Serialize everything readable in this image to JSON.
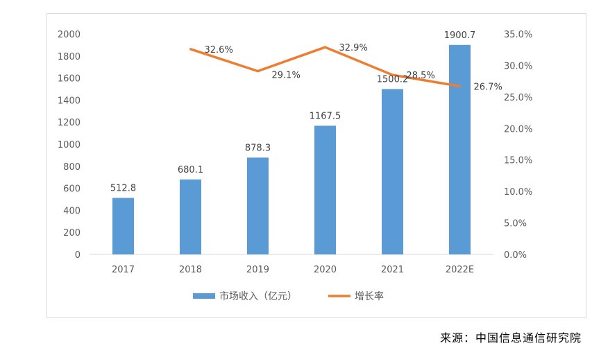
{
  "chart_data": {
    "type": "bar+line",
    "categories": [
      "2017",
      "2018",
      "2019",
      "2020",
      "2021",
      "2022E"
    ],
    "series": [
      {
        "name": "市场收入（亿元）",
        "type": "bar",
        "axis": "left",
        "values": [
          512.8,
          680.1,
          878.3,
          1167.5,
          1500.2,
          1900.7
        ],
        "labels": [
          "512.8",
          "680.1",
          "878.3",
          "1167.5",
          "1500.2",
          "1900.7"
        ],
        "color": "#5b9bd5"
      },
      {
        "name": "增长率",
        "type": "line",
        "axis": "right",
        "values": [
          null,
          32.6,
          29.1,
          32.9,
          28.5,
          26.7
        ],
        "labels": [
          "",
          "32.6%",
          "29.1%",
          "32.9%",
          "28.5%",
          "26.7%"
        ],
        "color": "#ed7d31"
      }
    ],
    "y_left": {
      "min": 0,
      "max": 2000,
      "step": 200,
      "ticks": [
        "0",
        "200",
        "400",
        "600",
        "800",
        "1000",
        "1200",
        "1400",
        "1600",
        "1800",
        "2000"
      ]
    },
    "y_right": {
      "min": 0,
      "max": 35,
      "step": 5,
      "ticks": [
        "0.0%",
        "5.0%",
        "10.0%",
        "15.0%",
        "20.0%",
        "25.0%",
        "30.0%",
        "35.0%"
      ]
    },
    "legend_position": "bottom",
    "grid": false
  },
  "source": "来源：中国信息通信研究院"
}
